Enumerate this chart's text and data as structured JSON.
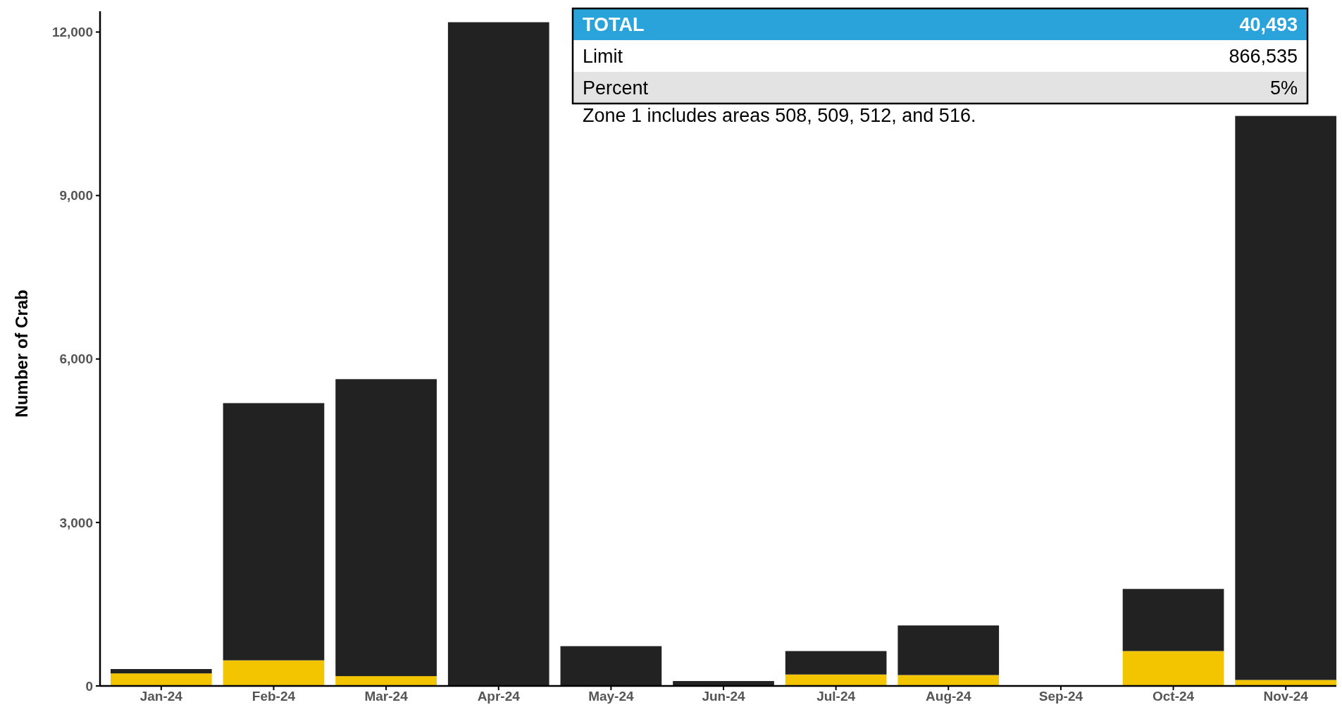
{
  "chart_data": {
    "type": "bar",
    "stacked": true,
    "ylabel": "Number of Crab",
    "categories": [
      "Jan-24",
      "Feb-24",
      "Mar-24",
      "Apr-24",
      "May-24",
      "Jun-24",
      "Jul-24",
      "Aug-24",
      "Sep-24",
      "Oct-24",
      "Nov-24"
    ],
    "series": [
      {
        "color": "#f2c500",
        "values": [
          230,
          470,
          180,
          0,
          0,
          0,
          210,
          200,
          0,
          640,
          110
        ]
      },
      {
        "color": "#222222",
        "values": [
          80,
          4720,
          5450,
          12180,
          730,
          90,
          430,
          910,
          0,
          1140,
          10350
        ]
      }
    ],
    "ylim": [
      0,
      12200
    ],
    "yticks": [
      0,
      {
        "value": 3000,
        "label": "3,000"
      },
      {
        "value": 6000,
        "label": "6,000"
      },
      {
        "value": 9000,
        "label": "9,000"
      },
      {
        "value": 12000,
        "label": "12,000"
      }
    ],
    "grid": false,
    "annotations": [
      "TOTAL",
      "40,493",
      "Limit",
      "866,535",
      "Percent",
      "5%",
      "Zone 1 includes areas 508, 509, 512, and 516."
    ]
  }
}
